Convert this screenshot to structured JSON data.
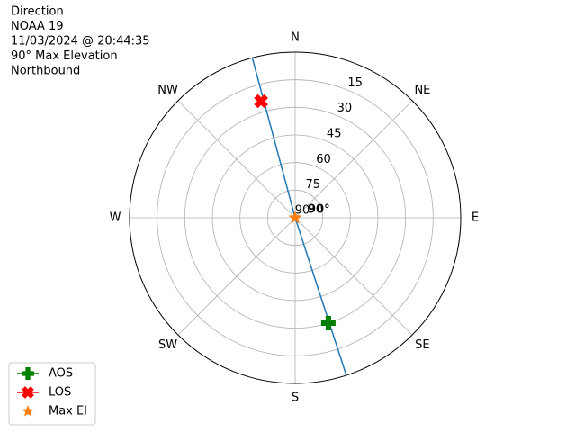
{
  "chart_data": {
    "type": "polar",
    "title_lines": [
      "Direction",
      "NOAA 19",
      "11/03/2024 @ 20:44:35",
      "90° Max Elevation",
      "Northbound"
    ],
    "theta_ticks": [
      {
        "value": 0,
        "label": "N"
      },
      {
        "value": 45,
        "label": "NE"
      },
      {
        "value": 90,
        "label": "E"
      },
      {
        "value": 135,
        "label": "SE"
      },
      {
        "value": 180,
        "label": "S"
      },
      {
        "value": 225,
        "label": "SW"
      },
      {
        "value": 270,
        "label": "W"
      },
      {
        "value": 315,
        "label": "NW"
      }
    ],
    "rlim": [
      90,
      0
    ],
    "rticks": [
      90,
      75,
      60,
      45,
      30,
      15
    ],
    "rlabel_position": 22.5,
    "grid": true,
    "track": {
      "color": "#1f77b4",
      "azimuth": [
        345,
        0,
        162
      ],
      "elevation": [
        0,
        90,
        0
      ]
    },
    "series": [
      {
        "name": "AOS",
        "color": "#008000",
        "marker": "plus",
        "line": true,
        "azimuth": [
          162.5
        ],
        "elevation": [
          30
        ]
      },
      {
        "name": "LOS",
        "color": "#ff0000",
        "marker": "x",
        "line": true,
        "azimuth": [
          343.7
        ],
        "elevation": [
          24
        ]
      },
      {
        "name": "Max El",
        "color": "#ff7f0e",
        "marker": "star",
        "line": false,
        "azimuth": [
          0
        ],
        "elevation": [
          90
        ]
      }
    ],
    "annotation": {
      "text": "90°",
      "azimuth": 0,
      "elevation": 90
    },
    "legend": "lower left"
  }
}
